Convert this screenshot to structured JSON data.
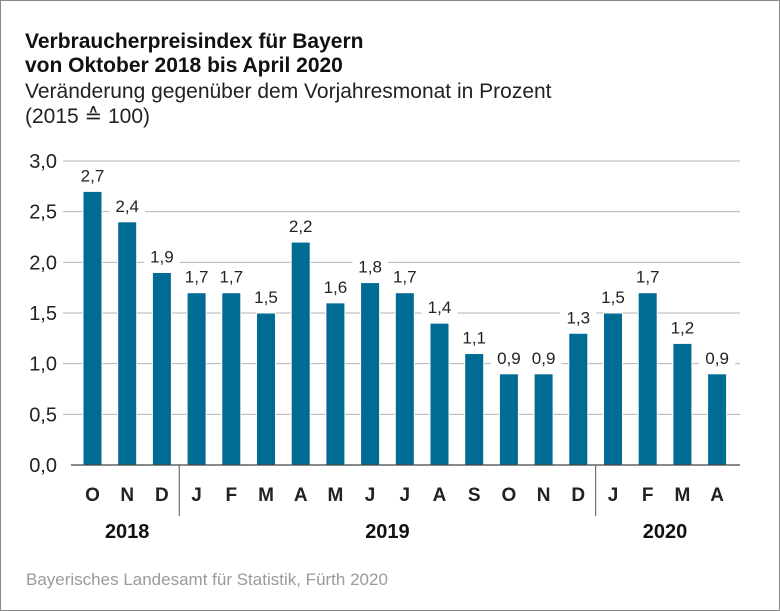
{
  "chart_data": {
    "type": "bar",
    "title": "Verbraucherpreisindex für Bayern",
    "title_line2": "von Oktober 2018 bis April 2020",
    "subtitle": "Veränderung gegenüber dem Vorjahresmonat in Prozent",
    "subtitle_line2": "(2015 ≙ 100)",
    "source": "Bayerisches Landesamt für Statistik, Fürth 2020",
    "categories": [
      "O",
      "N",
      "D",
      "J",
      "F",
      "M",
      "A",
      "M",
      "J",
      "J",
      "A",
      "S",
      "O",
      "N",
      "D",
      "J",
      "F",
      "M",
      "A"
    ],
    "values": [
      2.7,
      2.4,
      1.9,
      1.7,
      1.7,
      1.5,
      2.2,
      1.6,
      1.8,
      1.7,
      1.4,
      1.1,
      0.9,
      0.9,
      1.3,
      1.5,
      1.7,
      1.2,
      0.9
    ],
    "data_labels": [
      "2,7",
      "2,4",
      "1,9",
      "1,7",
      "1,7",
      "1,5",
      "2,2",
      "1,6",
      "1,8",
      "1,7",
      "1,4",
      "1,1",
      "0,9",
      "0,9",
      "1,3",
      "1,5",
      "1,7",
      "1,2",
      "0,9"
    ],
    "years": [
      {
        "label": "2018",
        "start": 0,
        "end": 2
      },
      {
        "label": "2019",
        "start": 3,
        "end": 14
      },
      {
        "label": "2020",
        "start": 15,
        "end": 18
      }
    ],
    "yticks": [
      0,
      0.5,
      1,
      1.5,
      2,
      2.5,
      3
    ],
    "ytick_labels": [
      "0,0",
      "0,5",
      "1,0",
      "1,5",
      "2,0",
      "2,5",
      "3,0"
    ],
    "ylim": [
      0,
      3
    ],
    "xlabel": "",
    "ylabel": "",
    "grid": true,
    "bar_color": "#006c93",
    "grid_color": "#b4b4b4"
  }
}
